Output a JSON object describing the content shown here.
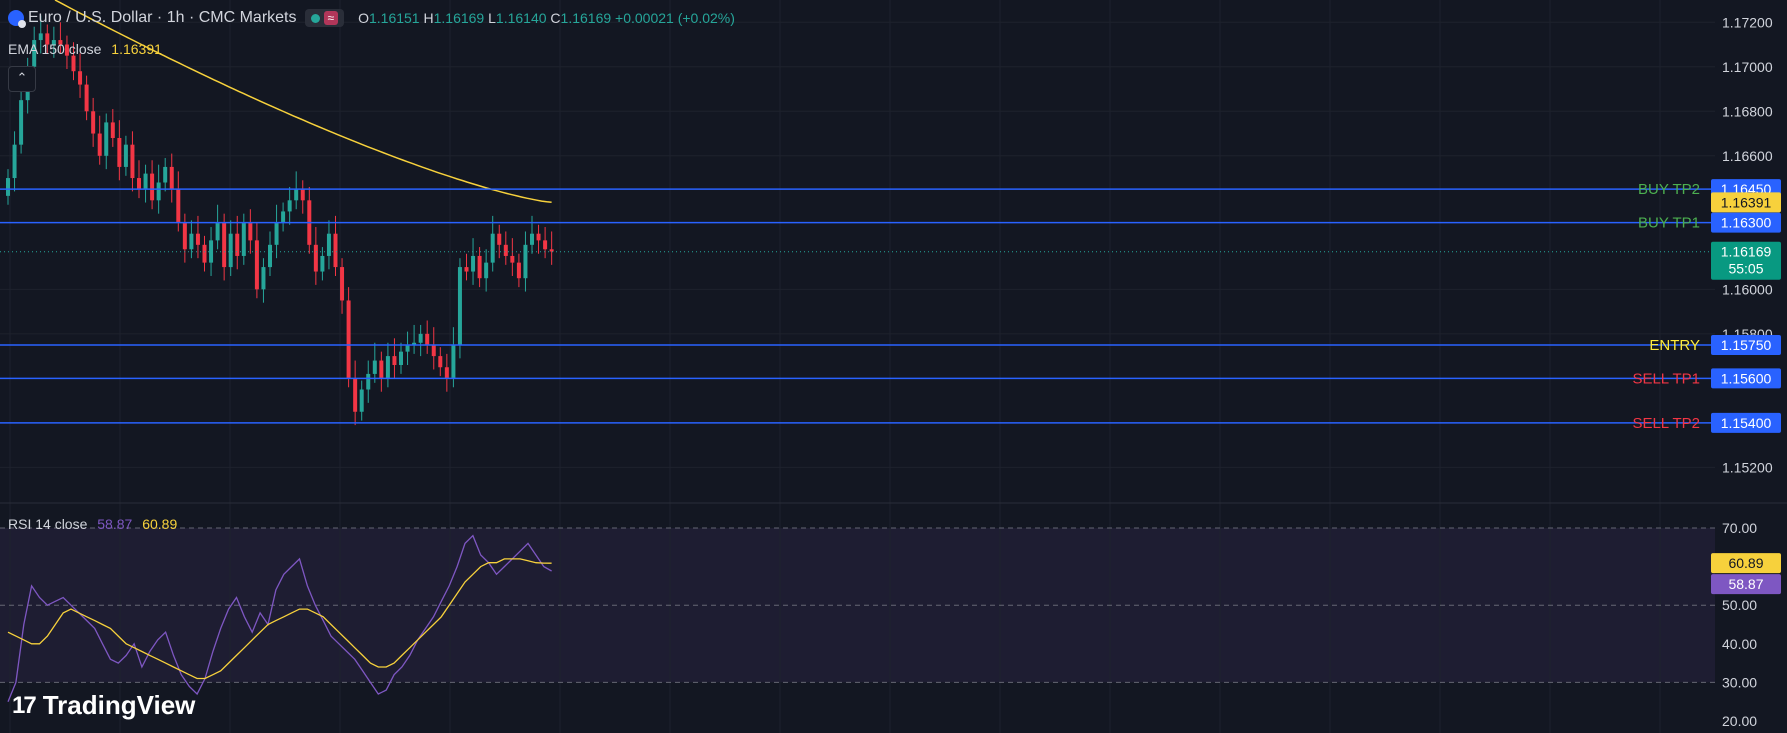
{
  "header": {
    "symbol": "Euro / U.S. Dollar · 1h · CMC Markets",
    "ohlc": {
      "o_label": "O",
      "o": "1.16151",
      "h_label": "H",
      "h": "1.16169",
      "l_label": "L",
      "l": "1.16140",
      "c_label": "C",
      "c": "1.16169",
      "change": "+0.00021 (+0.02%)"
    },
    "wave_icon": "≈"
  },
  "ema": {
    "label": "EMA 150 close",
    "value": "1.16391"
  },
  "rsi": {
    "label": "RSI 14 close",
    "value_rsi": "58.87",
    "value_ma": "60.89"
  },
  "logo_text": "TradingView",
  "colors": {
    "bg": "#131722",
    "grid": "#1e222d",
    "up": "#26a69a",
    "down": "#f23645",
    "ema": "#f7d13c",
    "line": "#2962ff",
    "rsi": "#7e57c2",
    "rsi_ma": "#f7d13c",
    "buy": "#4caf50",
    "sell": "#f23645",
    "entry": "#ffeb3b"
  },
  "chart_data": [
    {
      "type": "candlestick",
      "title": "Euro / U.S. Dollar · 1h · CMC Markets",
      "ylim": [
        1.1504,
        1.173
      ],
      "y_ticks": [
        "1.17200",
        "1.17000",
        "1.16800",
        "1.16600",
        "1.16000",
        "1.15800",
        "1.15200"
      ],
      "price_series": [
        1.165,
        1.1665,
        1.1685,
        1.17,
        1.1712,
        1.1715,
        1.171,
        1.1712,
        1.171,
        1.1705,
        1.1698,
        1.1692,
        1.168,
        1.167,
        1.166,
        1.1675,
        1.1668,
        1.1655,
        1.1665,
        1.165,
        1.1645,
        1.1652,
        1.164,
        1.1648,
        1.1655,
        1.1645,
        1.163,
        1.1618,
        1.1625,
        1.162,
        1.1612,
        1.1622,
        1.163,
        1.161,
        1.1625,
        1.1615,
        1.163,
        1.1622,
        1.16,
        1.161,
        1.162,
        1.163,
        1.1635,
        1.164,
        1.1645,
        1.164,
        1.162,
        1.1608,
        1.1615,
        1.1625,
        1.161,
        1.1595,
        1.156,
        1.1545,
        1.1555,
        1.1562,
        1.1568,
        1.156,
        1.157,
        1.1566,
        1.1572,
        1.1575,
        1.1576,
        1.158,
        1.1575,
        1.157,
        1.1565,
        1.156,
        1.1575,
        1.161,
        1.1608,
        1.1615,
        1.1605,
        1.1612,
        1.1625,
        1.162,
        1.1615,
        1.1612,
        1.1605,
        1.162,
        1.1625,
        1.1622,
        1.1618,
        1.1617
      ],
      "ema": {
        "name": "EMA 150 close",
        "start": 1.173,
        "end": 1.16391,
        "value": "1.16391"
      },
      "levels": [
        {
          "label": "BUY TP2",
          "value": "1.16450",
          "color": "#4caf50"
        },
        {
          "label": "BUY TP1",
          "value": "1.16300",
          "color": "#4caf50"
        },
        {
          "label": "ENTRY",
          "value": "1.15750",
          "color": "#ffeb3b"
        },
        {
          "label": "SELL TP1",
          "value": "1.15600",
          "color": "#f23645"
        },
        {
          "label": "SELL TP2",
          "value": "1.15400",
          "color": "#f23645"
        }
      ],
      "last_price": {
        "value": "1.16169",
        "countdown": "55:05"
      }
    },
    {
      "type": "line",
      "title": "RSI 14 close",
      "ylim": [
        20,
        70
      ],
      "y_ticks": [
        "70.00",
        "50.00",
        "40.00",
        "30.00",
        "20.00"
      ],
      "rsi_series": [
        25,
        30,
        45,
        55,
        52,
        50,
        51,
        52,
        50,
        48,
        46,
        44,
        40,
        36,
        35,
        37,
        40,
        34,
        38,
        41,
        43,
        37,
        32,
        29,
        27,
        31,
        38,
        44,
        49,
        52,
        47,
        43,
        48,
        45,
        54,
        58,
        60,
        62,
        55,
        50,
        46,
        42,
        40,
        38,
        36,
        33,
        30,
        27,
        28,
        32,
        34,
        37,
        41,
        44,
        47,
        51,
        55,
        60,
        66,
        68,
        63,
        61,
        58,
        60,
        62,
        64,
        66,
        63,
        60,
        58.87
      ],
      "rsi_ma_series": [
        43,
        42,
        41,
        40,
        40,
        42,
        45,
        48,
        49,
        48,
        47,
        46,
        45,
        44,
        42,
        40,
        39,
        38,
        37,
        36,
        35,
        34,
        33,
        32,
        31,
        31,
        32,
        33,
        35,
        37,
        39,
        41,
        43,
        45,
        46,
        47,
        48,
        49,
        49,
        48,
        47,
        45,
        43,
        41,
        39,
        37,
        35,
        34,
        34,
        35,
        37,
        39,
        41,
        43,
        45,
        47,
        50,
        53,
        56,
        58,
        60,
        61,
        61,
        62,
        62,
        62,
        61.5,
        61,
        60.9,
        60.89
      ],
      "rsi_last": "58.87",
      "rsi_ma_last": "60.89"
    }
  ]
}
